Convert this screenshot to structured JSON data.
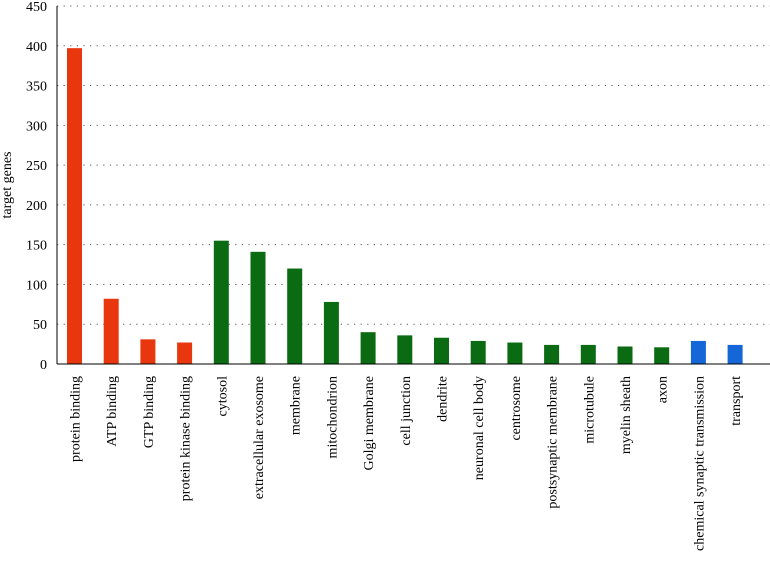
{
  "chart_data": {
    "type": "bar",
    "title": "",
    "xlabel": "",
    "ylabel": "target genes",
    "ylim": [
      0,
      450
    ],
    "yticks": [
      0,
      50,
      100,
      150,
      200,
      250,
      300,
      350,
      400,
      450
    ],
    "grid": true,
    "categories": [
      "protein binding",
      "ATP binding",
      "GTP binding",
      "protein kinase binding",
      "cytosol",
      "extracellular exosome",
      "membrane",
      "mitochondrion",
      "Golgi membrane",
      "cell junction",
      "dendrite",
      "neuronal cell body",
      "centrosome",
      "postsynaptic membrane",
      "microtubule",
      "myelin sheath",
      "axon",
      "chemical synaptic transmission",
      "transport"
    ],
    "values": [
      397,
      82,
      31,
      27,
      155,
      141,
      120,
      78,
      40,
      36,
      33,
      29,
      27,
      24,
      24,
      22,
      21,
      29,
      24
    ],
    "bar_groups": [
      "mf",
      "mf",
      "mf",
      "mf",
      "cc",
      "cc",
      "cc",
      "cc",
      "cc",
      "cc",
      "cc",
      "cc",
      "cc",
      "cc",
      "cc",
      "cc",
      "cc",
      "bp",
      "bp"
    ],
    "colors": {
      "mf": "#e8360e",
      "cc": "#0a6b12",
      "bp": "#1566d6"
    }
  }
}
